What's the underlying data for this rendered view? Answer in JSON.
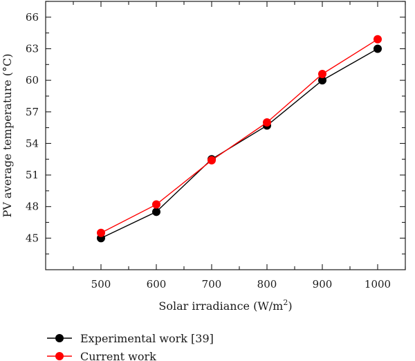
{
  "chart_data": {
    "type": "line",
    "title": "",
    "xlabel": "Solar irradiance (W/m",
    "xlabel_superscript": "2",
    "xlabel_suffix": ")",
    "ylabel": "PV  average temperature (°C)",
    "xlim": [
      400,
      1050
    ],
    "ylim": [
      42,
      67.5
    ],
    "x_ticks": [
      500,
      600,
      700,
      800,
      900,
      1000
    ],
    "y_ticks": [
      45,
      48,
      51,
      54,
      57,
      60,
      63,
      66
    ],
    "grid": false,
    "legend_placement": "bottom-left",
    "x": [
      500,
      600,
      700,
      800,
      900,
      1000
    ],
    "series": [
      {
        "name": "Experimental work [39]",
        "color": "#000000",
        "values": [
          45.0,
          47.5,
          52.5,
          55.7,
          60.0,
          63.0
        ]
      },
      {
        "name": "Current work",
        "color": "#ff0000",
        "values": [
          45.5,
          48.2,
          52.4,
          56.0,
          60.6,
          63.9
        ]
      }
    ]
  }
}
